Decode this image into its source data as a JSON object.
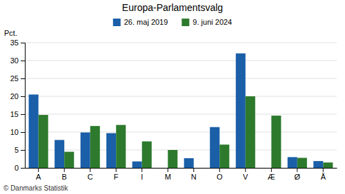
{
  "chart_data": {
    "type": "bar",
    "title": "Europa-Parlamentsvalg",
    "ylabel": "Pct.",
    "categories": [
      "A",
      "B",
      "C",
      "F",
      "I",
      "M",
      "N",
      "O",
      "V",
      "Æ",
      "Ø",
      "Å"
    ],
    "series": [
      {
        "name": "26. maj 2019",
        "color": "#1a5fa8",
        "values": [
          20.5,
          7.8,
          9.9,
          9.7,
          1.8,
          0.0,
          2.7,
          11.4,
          32.0,
          0.0,
          3.0,
          1.9
        ]
      },
      {
        "name": "9. juni 2024",
        "color": "#2d7a2d",
        "values": [
          14.8,
          4.5,
          11.7,
          12.0,
          7.4,
          5.0,
          0.0,
          6.5,
          20.0,
          14.6,
          2.8,
          1.5
        ]
      }
    ],
    "ylim": [
      0,
      35
    ],
    "yticks": [
      0,
      5,
      10,
      15,
      20,
      25,
      30,
      35
    ],
    "grid": true,
    "legend": "top",
    "annotations": [
      "© Danmarks Statistik"
    ]
  }
}
